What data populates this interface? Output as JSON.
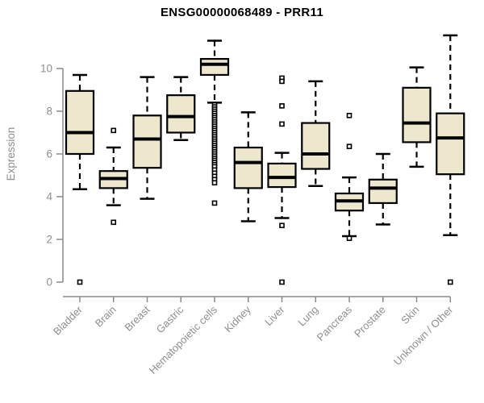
{
  "title": "ENSG00000068489 - PRR11",
  "colors": {
    "background": "#FFFFFF",
    "box_fill": "#ECE7CD",
    "box_stroke": "#000000",
    "median": "#000000",
    "whisker": "#000000",
    "outlier_fill": "#FFFFFF",
    "axis": "#8A8A8A",
    "axis_label": "#8F8F8F",
    "title_color": "#000000"
  },
  "chart_data": {
    "type": "box",
    "title": "ENSG00000068489 - PRR11",
    "xlabel": "",
    "ylabel": "Expression",
    "yticks": [
      0,
      2,
      4,
      6,
      8,
      10
    ],
    "ylim": [
      0,
      11.8
    ],
    "grid": false,
    "legend": false,
    "categories": [
      "Bladder",
      "Brain",
      "Breast",
      "Gastric",
      "Hematopoietic cells",
      "Kidney",
      "Liver",
      "Lung",
      "Pancreas",
      "Prostate",
      "Skin",
      "Unknown / Other"
    ],
    "boxes": [
      {
        "category": "Bladder",
        "low": 4.35,
        "q1": 6.0,
        "median": 7.0,
        "q3": 8.95,
        "high": 9.7,
        "outliers": [
          0
        ]
      },
      {
        "category": "Brain",
        "low": 3.6,
        "q1": 4.4,
        "median": 4.85,
        "q3": 5.2,
        "high": 6.3,
        "outliers": [
          7.1,
          2.8
        ]
      },
      {
        "category": "Breast",
        "low": 3.9,
        "q1": 5.35,
        "median": 6.7,
        "q3": 7.8,
        "high": 9.6,
        "outliers": []
      },
      {
        "category": "Gastric",
        "low": 6.65,
        "q1": 7.0,
        "median": 7.75,
        "q3": 8.75,
        "high": 9.6,
        "outliers": []
      },
      {
        "category": "Hematopoietic cells",
        "low": 8.4,
        "q1": 9.7,
        "median": 10.2,
        "q3": 10.45,
        "high": 11.3,
        "outliers": [
          8.3,
          8.2,
          8.1,
          8.0,
          7.9,
          7.8,
          7.7,
          7.6,
          7.5,
          7.4,
          7.3,
          7.2,
          7.1,
          7.0,
          6.9,
          6.8,
          6.7,
          6.6,
          6.5,
          6.4,
          6.3,
          6.2,
          6.1,
          6.0,
          5.9,
          5.8,
          5.7,
          5.6,
          5.5,
          5.4,
          5.25,
          5.1,
          4.95,
          4.8,
          4.65,
          3.7
        ]
      },
      {
        "category": "Kidney",
        "low": 2.85,
        "q1": 4.4,
        "median": 5.6,
        "q3": 6.3,
        "high": 7.95,
        "outliers": []
      },
      {
        "category": "Liver",
        "low": 3.0,
        "q1": 4.45,
        "median": 4.9,
        "q3": 5.55,
        "high": 6.05,
        "outliers": [
          9.55,
          9.4,
          8.25,
          7.4,
          2.65,
          0
        ]
      },
      {
        "category": "Lung",
        "low": 4.5,
        "q1": 5.3,
        "median": 6.0,
        "q3": 7.45,
        "high": 9.4,
        "outliers": []
      },
      {
        "category": "Pancreas",
        "low": 2.15,
        "q1": 3.35,
        "median": 3.8,
        "q3": 4.15,
        "high": 4.9,
        "outliers": [
          7.8,
          6.35,
          2.05
        ]
      },
      {
        "category": "Prostate",
        "low": 2.7,
        "q1": 3.7,
        "median": 4.4,
        "q3": 4.8,
        "high": 6.0,
        "outliers": []
      },
      {
        "category": "Skin",
        "low": 5.4,
        "q1": 6.55,
        "median": 7.45,
        "q3": 9.1,
        "high": 10.05,
        "outliers": []
      },
      {
        "category": "Unknown / Other",
        "low": 2.2,
        "q1": 5.05,
        "median": 6.75,
        "q3": 7.9,
        "high": 11.55,
        "outliers": [
          0
        ]
      }
    ]
  }
}
